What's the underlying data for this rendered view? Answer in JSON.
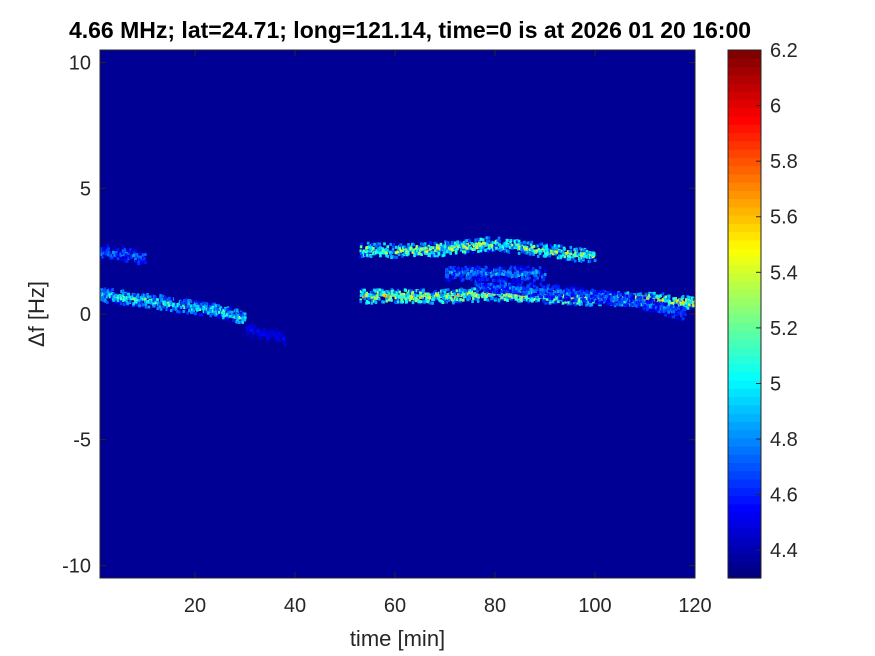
{
  "chart_data": {
    "type": "heatmap",
    "title": "4.66 MHz;  lat=24.71; long=121.14, time=0 is at 2026 01 20 16:00",
    "xlabel": "time [min]",
    "ylabel": "Δf [Hz]",
    "xlim": [
      1,
      120
    ],
    "ylim": [
      -10.5,
      10.5
    ],
    "xticks": [
      20,
      40,
      60,
      80,
      100,
      120
    ],
    "yticks": [
      -10,
      -5,
      0,
      5,
      10
    ],
    "colorbar": {
      "clim": [
        4.3,
        6.2
      ],
      "ticks": [
        4.4,
        4.6,
        4.8,
        5,
        5.2,
        5.4,
        5.6,
        5.8,
        6,
        6.2
      ],
      "colormap": "jet",
      "levels": 64
    },
    "background_value": 4.3,
    "traces": [
      {
        "points": [
          [
            1,
            0.75
          ],
          [
            10,
            0.55
          ],
          [
            18,
            0.3
          ],
          [
            25,
            0.1
          ],
          [
            30,
            -0.2
          ]
        ],
        "peak": 5.3
      },
      {
        "points": [
          [
            1,
            2.45
          ],
          [
            5,
            2.4
          ],
          [
            10,
            2.2
          ]
        ],
        "peak": 4.9
      },
      {
        "points": [
          [
            30,
            -0.6
          ],
          [
            38,
            -1.0
          ]
        ],
        "peak": 4.6
      },
      {
        "points": [
          [
            53,
            0.7
          ],
          [
            60,
            0.7
          ],
          [
            70,
            0.7
          ],
          [
            80,
            0.8
          ],
          [
            90,
            0.7
          ],
          [
            100,
            0.6
          ],
          [
            110,
            0.6
          ],
          [
            120,
            0.4
          ]
        ],
        "peak": 5.7
      },
      {
        "points": [
          [
            53,
            2.55
          ],
          [
            60,
            2.5
          ],
          [
            70,
            2.6
          ],
          [
            80,
            2.8
          ],
          [
            90,
            2.5
          ],
          [
            100,
            2.3
          ]
        ],
        "peak": 5.6
      },
      {
        "points": [
          [
            70,
            1.6
          ],
          [
            80,
            1.6
          ],
          [
            90,
            1.6
          ]
        ],
        "peak": 5.0
      },
      {
        "points": [
          [
            76,
            1.2
          ],
          [
            85,
            1.0
          ],
          [
            95,
            0.8
          ],
          [
            105,
            0.6
          ],
          [
            118,
            0.0
          ]
        ],
        "peak": 4.9
      }
    ]
  }
}
